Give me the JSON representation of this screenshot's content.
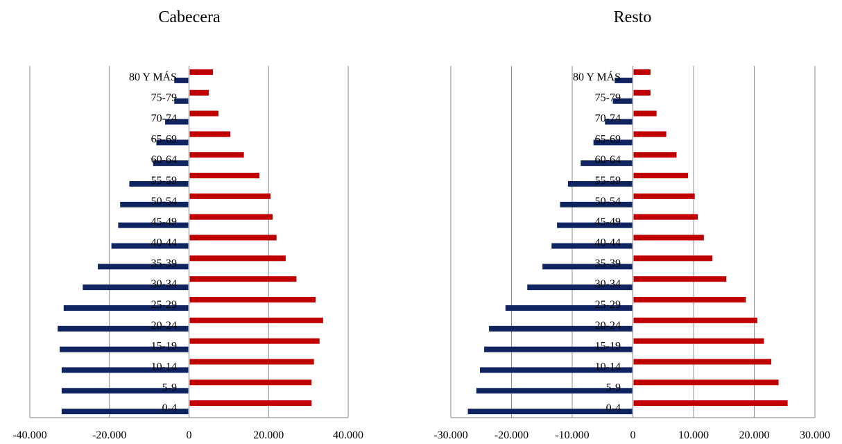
{
  "chart_data": [
    {
      "type": "bar",
      "orientation": "horizontal",
      "title": "Cabecera",
      "categories": [
        "0-4",
        "5-9",
        "10-14",
        "15-19",
        "20-24",
        "25-29",
        "30-34",
        "35-39",
        "40-44",
        "45-49",
        "50-54",
        "55-59",
        "60-64",
        "65-69",
        "70-74",
        "75-79",
        "80 Y MÁS"
      ],
      "series": [
        {
          "color": "#0f2460",
          "values": [
            -32000,
            -32000,
            -32000,
            -32500,
            -33000,
            -31500,
            -26700,
            -22900,
            -19500,
            -17800,
            -17300,
            -15000,
            -9000,
            -8200,
            -6000,
            -3700,
            -3700
          ]
        },
        {
          "color": "#c00000",
          "values": [
            30800,
            30800,
            31400,
            32800,
            33700,
            31800,
            27000,
            24300,
            22000,
            21000,
            20500,
            17700,
            13800,
            10400,
            7400,
            5000,
            6000
          ]
        }
      ],
      "xlim": [
        -40000,
        40000
      ],
      "x_ticks": [
        -40000,
        -20000,
        0,
        20000,
        40000
      ],
      "x_tick_labels": [
        "-40.000",
        "-20.000",
        "0",
        "20.000",
        "40.000"
      ],
      "grid": true
    },
    {
      "type": "bar",
      "orientation": "horizontal",
      "title": "Resto",
      "categories": [
        "0-4",
        "5-9",
        "10-14",
        "15-19",
        "20-24",
        "25-29",
        "30-34",
        "35-39",
        "40-44",
        "45-49",
        "50-54",
        "55-59",
        "60-64",
        "65-69",
        "70-74",
        "75-79",
        "80 Y MÁS"
      ],
      "series": [
        {
          "color": "#0f2460",
          "values": [
            -27200,
            -25800,
            -25200,
            -24500,
            -23700,
            -21000,
            -17400,
            -14900,
            -13400,
            -12500,
            -12000,
            -10700,
            -8600,
            -6500,
            -4600,
            -3300,
            -3000
          ]
        },
        {
          "color": "#c00000",
          "values": [
            25500,
            24000,
            22800,
            21600,
            20500,
            18600,
            15400,
            13100,
            11700,
            10700,
            10200,
            9100,
            7200,
            5500,
            3900,
            2900,
            2900
          ]
        }
      ],
      "xlim": [
        -30000,
        30000
      ],
      "x_ticks": [
        -30000,
        -20000,
        -10000,
        0,
        10000,
        20000,
        30000
      ],
      "x_tick_labels": [
        "-30.000",
        "-20.000",
        "-10.000",
        "0",
        "10.000",
        "20.000",
        "30.000"
      ],
      "grid": true
    }
  ]
}
